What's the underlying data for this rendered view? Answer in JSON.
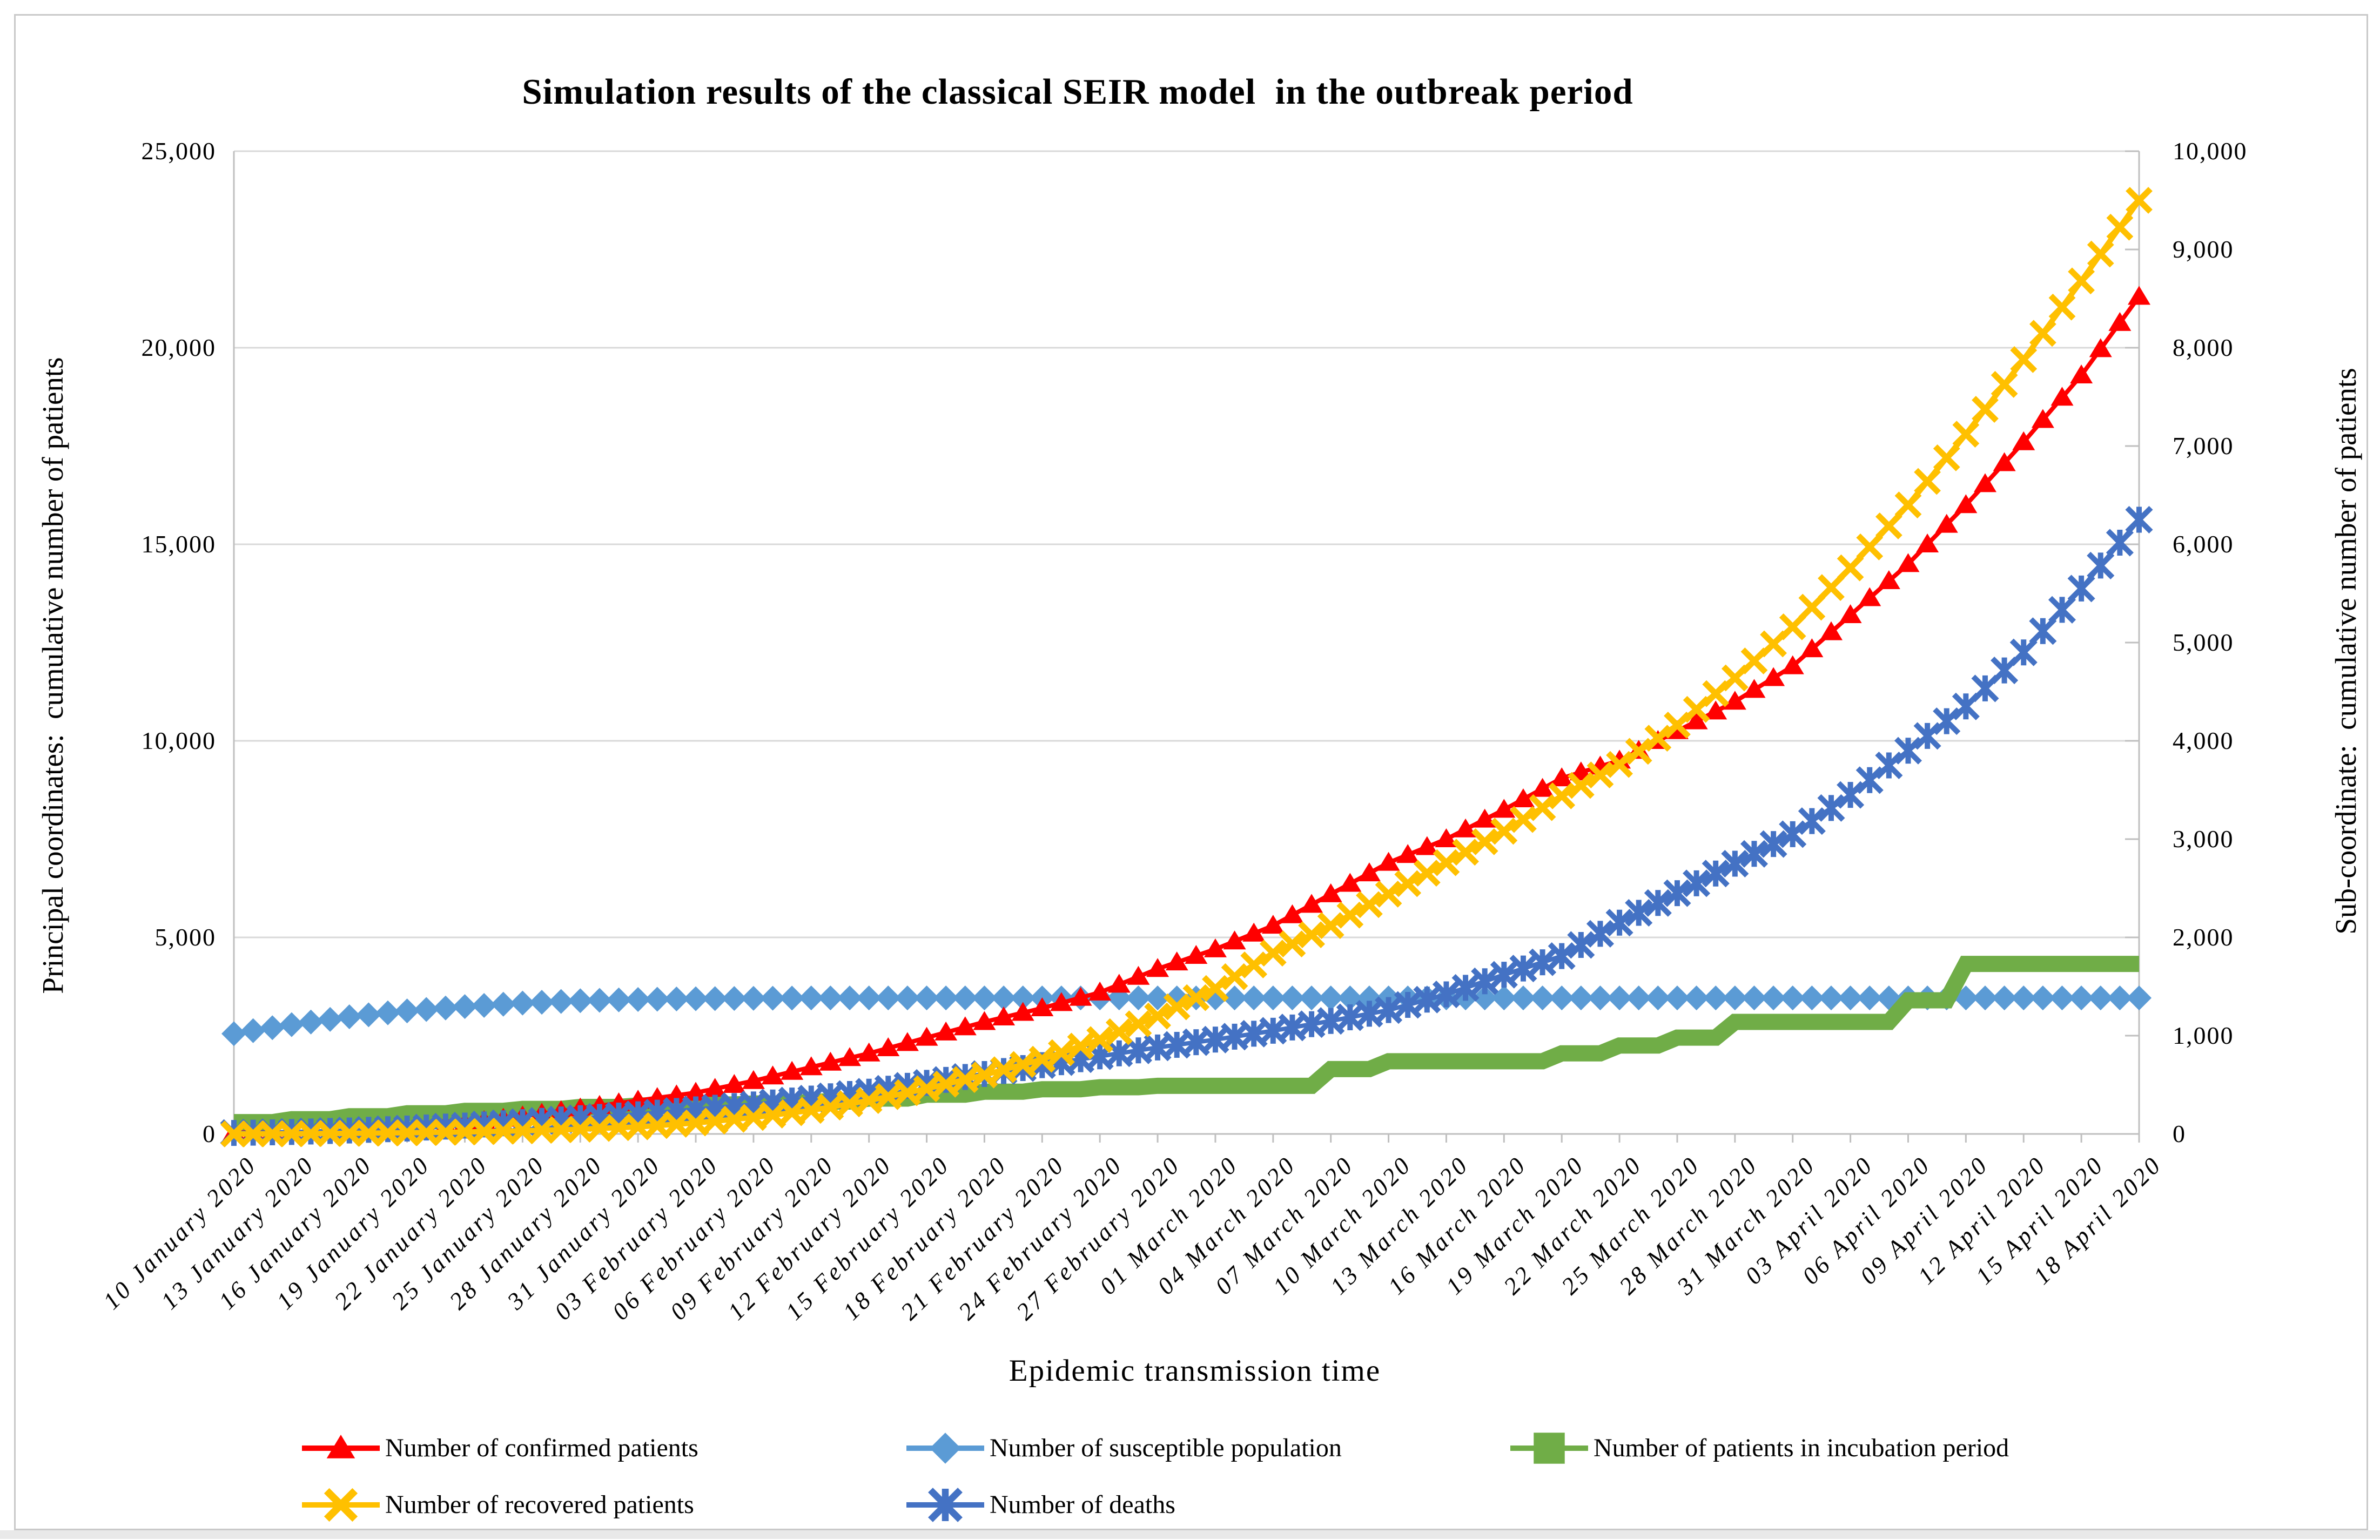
{
  "chart": {
    "title": "Simulation results of the classical SEIR model  in the outbreak period",
    "x_axis_title": "Epidemic transmission time",
    "y_axis_left_title": "Principal coordinates:  cumulative number of patients",
    "y_axis_right_title": "Sub-coordinate:  cumulative number of patients"
  },
  "chart_data": {
    "type": "line",
    "title": "Simulation results of the classical SEIR model  in the outbreak period",
    "xlabel": "Epidemic transmission time",
    "grid": true,
    "legend_position": "bottom",
    "categories": [
      "10 January 2020",
      "13 January 2020",
      "16 January 2020",
      "19 January 2020",
      "22 January 2020",
      "25 January 2020",
      "28 January 2020",
      "31 January 2020",
      "03 February 2020",
      "06 February 2020",
      "09 February 2020",
      "12 February 2020",
      "15 February 2020",
      "18 February 2020",
      "21 February 2020",
      "24 February 2020",
      "27 February 2020",
      "01 March 2020",
      "04 March 2020",
      "07 March 2020",
      "10 March 2020",
      "13 March 2020",
      "16 March 2020",
      "19 March 2020",
      "22 March 2020",
      "25 March 2020",
      "28 March 2020",
      "31 March 2020",
      "03 April 2020",
      "06 April 2020",
      "09 April 2020",
      "12 April 2020",
      "15 April 2020",
      "18 April 2020"
    ],
    "y_axis_left": {
      "title": "Principal coordinates:  cumulative number of patients",
      "min": 0,
      "max": 25000,
      "tick_labels": [
        "0",
        "5,000",
        "10,000",
        "15,000",
        "20,000",
        "25,000"
      ]
    },
    "y_axis_right": {
      "title": "Sub-coordinate:  cumulative number of patients",
      "min": 0,
      "max": 10000,
      "tick_labels": [
        "0",
        "1,000",
        "2,000",
        "3,000",
        "4,000",
        "5,000",
        "6,000",
        "7,000",
        "8,000",
        "9,000",
        "10,000"
      ]
    },
    "series": [
      {
        "name": "Number of confirmed patients",
        "axis": "principal",
        "color": "#FF0000",
        "marker": "triangle",
        "values": [
          40,
          45,
          60,
          120,
          270,
          450,
          650,
          850,
          1050,
          1350,
          1700,
          2050,
          2450,
          2850,
          3200,
          3600,
          4200,
          4700,
          5300,
          6100,
          6900,
          7500,
          8250,
          9050,
          9500,
          10250,
          11000,
          11900,
          13200,
          14500,
          16000,
          17600,
          19300,
          21300
        ]
      },
      {
        "name": "Number of susceptible population",
        "axis": "principal",
        "color": "#5B9BD5",
        "marker": "diamond",
        "values": [
          2550,
          2780,
          2980,
          3130,
          3240,
          3330,
          3390,
          3420,
          3440,
          3450,
          3460,
          3460,
          3460,
          3460,
          3460,
          3460,
          3460,
          3460,
          3460,
          3460,
          3460,
          3460,
          3460,
          3460,
          3460,
          3460,
          3460,
          3460,
          3460,
          3460,
          3460,
          3460,
          3460,
          3460
        ]
      },
      {
        "name": "Number of patients in incubation period",
        "axis": "sub",
        "color": "#70AD47",
        "marker": "square",
        "values": [
          120,
          150,
          180,
          210,
          235,
          255,
          275,
          290,
          300,
          310,
          330,
          360,
          400,
          430,
          455,
          475,
          490,
          490,
          490,
          660,
          740,
          740,
          740,
          820,
          900,
          980,
          1140,
          1140,
          1140,
          1360,
          1730,
          1730,
          1730,
          1730
        ]
      },
      {
        "name": "Number of recovered patients",
        "axis": "principal",
        "color": "#FFC000",
        "marker": "x",
        "values": [
          0,
          5,
          15,
          30,
          50,
          80,
          120,
          180,
          280,
          420,
          600,
          850,
          1150,
          1500,
          1900,
          2400,
          3000,
          3700,
          4600,
          5300,
          6100,
          6900,
          7700,
          8600,
          9400,
          10400,
          11600,
          12900,
          14400,
          16000,
          17800,
          19700,
          21700,
          23750
        ]
      },
      {
        "name": "Number of deaths",
        "axis": "sub",
        "color": "#4472C4",
        "marker": "asterisk",
        "values": [
          10,
          20,
          35,
          55,
          85,
          120,
          160,
          200,
          250,
          300,
          360,
          430,
          520,
          610,
          700,
          790,
          880,
          960,
          1050,
          1150,
          1260,
          1420,
          1620,
          1810,
          2150,
          2450,
          2750,
          3050,
          3450,
          3900,
          4350,
          4900,
          5550,
          6250
        ]
      }
    ],
    "legend_rows": [
      [
        0,
        1,
        2
      ],
      [
        3,
        4
      ]
    ],
    "colors": {
      "gridline": "#D9D9D9",
      "axis_line": "#BFBFBF",
      "text": "#000000"
    }
  }
}
